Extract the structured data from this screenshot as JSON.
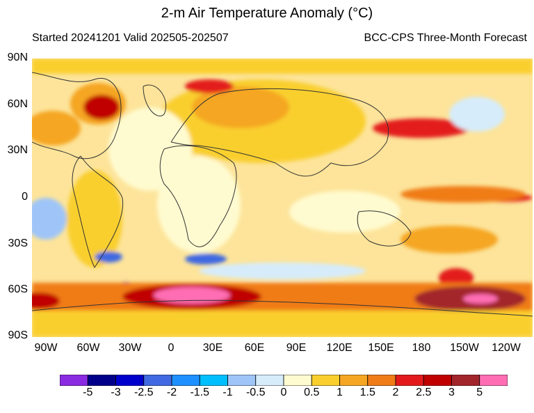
{
  "title": "2-m Air Temperature Anomaly (°C)",
  "subtitle_left": "Started 20241201  Valid 202505-202507",
  "subtitle_right": "BCC-CPS Three-Month Forecast",
  "map": {
    "lat_labels": [
      "90N",
      "60N",
      "30N",
      "0",
      "30S",
      "60S",
      "90S"
    ],
    "lon_labels": [
      "90W",
      "60W",
      "30W",
      "0",
      "30E",
      "60E",
      "90E",
      "120E",
      "150E",
      "180",
      "150W",
      "120W"
    ]
  },
  "colorbar": {
    "colors": [
      "#8a2be2",
      "#00008b",
      "#0000cd",
      "#4169e1",
      "#1e90ff",
      "#00bfff",
      "#9fc5f8",
      "#d6ecfb",
      "#fffbd0",
      "#f9cf2e",
      "#f5a623",
      "#f07c18",
      "#e31a1c",
      "#c00000",
      "#a3252c",
      "#ff6eb4"
    ],
    "labels": [
      "-5",
      "-3",
      "-2.5",
      "-2",
      "-1.5",
      "-1",
      "-0.5",
      "0",
      "0.5",
      "1",
      "1.5",
      "2",
      "2.5",
      "3",
      "5"
    ]
  }
}
